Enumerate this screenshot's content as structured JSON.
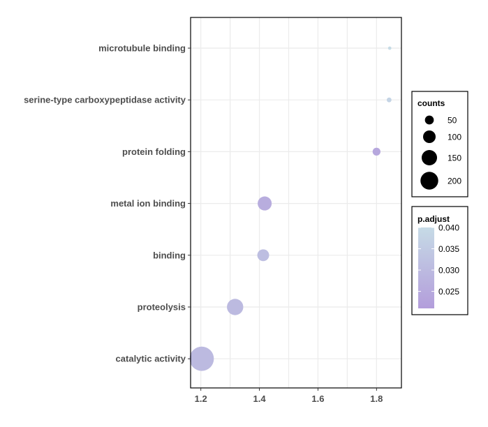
{
  "chart_data": {
    "type": "scatter",
    "categories": [
      "microtubule binding",
      "serine-type carboxypeptidase activity",
      "protein folding",
      "metal ion binding",
      "binding",
      "proteolysis",
      "catalytic activity"
    ],
    "points": [
      {
        "term": "microtubule binding",
        "x": 1.845,
        "counts": 4,
        "p_adjust": 0.04
      },
      {
        "term": "serine-type carboxypeptidase activity",
        "x": 1.843,
        "counts": 8,
        "p_adjust": 0.038
      },
      {
        "term": "protein folding",
        "x": 1.8,
        "counts": 22,
        "p_adjust": 0.024
      },
      {
        "term": "metal ion binding",
        "x": 1.418,
        "counts": 70,
        "p_adjust": 0.026
      },
      {
        "term": "binding",
        "x": 1.413,
        "counts": 50,
        "p_adjust": 0.031
      },
      {
        "term": "proteolysis",
        "x": 1.317,
        "counts": 95,
        "p_adjust": 0.03
      },
      {
        "term": "catalytic activity",
        "x": 1.203,
        "counts": 210,
        "p_adjust": 0.03
      }
    ],
    "xlim": [
      1.165,
      1.885
    ],
    "xticks": [
      "1.2",
      "1.4",
      "1.6",
      "1.8"
    ],
    "xtick_values": [
      1.2,
      1.4,
      1.6,
      1.8
    ],
    "grid": true,
    "legend": {
      "position": "right",
      "size_title": "counts",
      "size_breaks": [
        50,
        100,
        150,
        200
      ],
      "size_labels": [
        "50",
        "100",
        "150",
        "200"
      ],
      "color_title": "p.adjust",
      "color_range": [
        0.021,
        0.04
      ],
      "color_breaks": [
        0.04,
        0.035,
        0.03,
        0.025
      ],
      "color_labels": [
        "0.040",
        "0.035",
        "0.030",
        "0.025"
      ],
      "color_low": "#b39ddb",
      "color_high": "#c6dbe6"
    }
  }
}
